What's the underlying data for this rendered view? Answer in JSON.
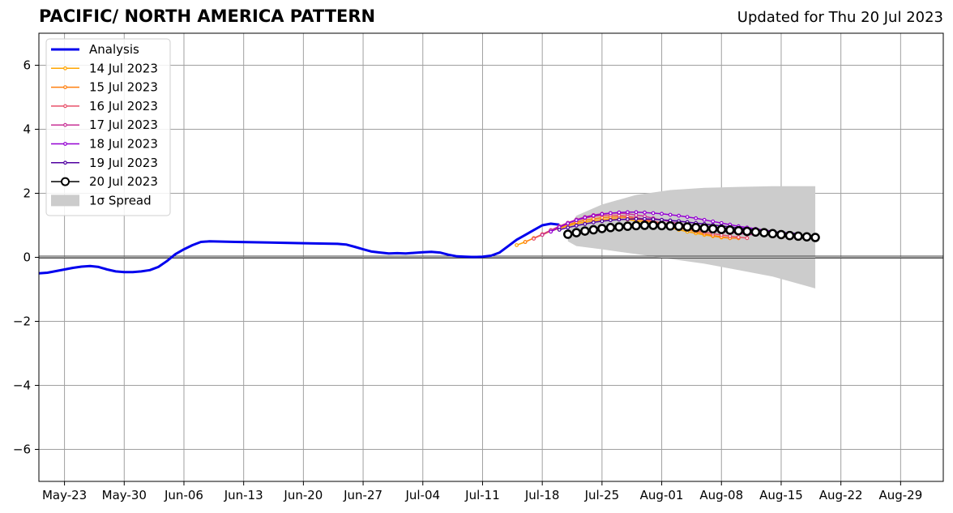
{
  "chart_data": {
    "type": "line",
    "title": "PACIFIC/ NORTH AMERICA PATTERN",
    "subtitle": "Updated for Thu 20 Jul 2023",
    "xlabel": "",
    "ylabel": "",
    "xlim": [
      "2023-05-20",
      "2023-09-03"
    ],
    "ylim": [
      -7,
      7
    ],
    "grid": true,
    "legend_position": "top-left",
    "x_ticks": [
      "2023-05-23",
      "2023-05-30",
      "2023-06-06",
      "2023-06-13",
      "2023-06-20",
      "2023-06-27",
      "2023-07-04",
      "2023-07-11",
      "2023-07-18",
      "2023-07-25",
      "2023-08-01",
      "2023-08-08",
      "2023-08-15",
      "2023-08-22",
      "2023-08-29"
    ],
    "x_tick_labels": [
      "May-23",
      "May-30",
      "Jun-06",
      "Jun-13",
      "Jun-20",
      "Jun-27",
      "Jul-04",
      "Jul-11",
      "Jul-18",
      "Jul-25",
      "Aug-01",
      "Aug-08",
      "Aug-15",
      "Aug-22",
      "Aug-29"
    ],
    "y_ticks": [
      -6,
      -4,
      -2,
      0,
      2,
      4,
      6
    ],
    "y_tick_labels": [
      "−6",
      "−4",
      "−2",
      "0",
      "2",
      "4",
      "6"
    ],
    "legend": [
      "Analysis",
      "14 Jul 2023",
      "15 Jul 2023",
      "16 Jul 2023",
      "17 Jul 2023",
      "18 Jul 2023",
      "19 Jul 2023",
      "20 Jul 2023",
      "1σ Spread"
    ],
    "series": [
      {
        "name": "Analysis",
        "color": "#0000ee",
        "x": [
          "2023-05-20",
          "2023-05-21",
          "2023-05-22",
          "2023-05-23",
          "2023-05-24",
          "2023-05-25",
          "2023-05-26",
          "2023-05-27",
          "2023-05-28",
          "2023-05-29",
          "2023-05-30",
          "2023-05-31",
          "2023-06-01",
          "2023-06-02",
          "2023-06-03",
          "2023-06-04",
          "2023-06-05",
          "2023-06-06",
          "2023-06-07",
          "2023-06-08",
          "2023-06-09",
          "2023-06-12",
          "2023-06-16",
          "2023-06-20",
          "2023-06-24",
          "2023-06-25",
          "2023-06-26",
          "2023-06-27",
          "2023-06-28",
          "2023-06-29",
          "2023-06-30",
          "2023-07-01",
          "2023-07-02",
          "2023-07-03",
          "2023-07-04",
          "2023-07-05",
          "2023-07-06",
          "2023-07-07",
          "2023-07-08",
          "2023-07-09",
          "2023-07-10",
          "2023-07-11",
          "2023-07-12",
          "2023-07-13",
          "2023-07-14",
          "2023-07-15",
          "2023-07-16",
          "2023-07-17",
          "2023-07-18",
          "2023-07-19",
          "2023-07-20"
        ],
        "values": [
          -0.5,
          -0.48,
          -0.43,
          -0.38,
          -0.33,
          -0.29,
          -0.27,
          -0.3,
          -0.38,
          -0.44,
          -0.46,
          -0.46,
          -0.44,
          -0.4,
          -0.3,
          -0.12,
          0.1,
          0.25,
          0.38,
          0.48,
          0.5,
          0.48,
          0.46,
          0.44,
          0.42,
          0.4,
          0.33,
          0.25,
          0.18,
          0.15,
          0.12,
          0.13,
          0.12,
          0.14,
          0.16,
          0.17,
          0.15,
          0.08,
          0.03,
          0.02,
          0.01,
          0.02,
          0.05,
          0.15,
          0.35,
          0.55,
          0.7,
          0.85,
          1.0,
          1.05,
          1.02
        ]
      },
      {
        "name": "14 Jul 2023",
        "color": "#ffa500",
        "start": "2023-07-15",
        "values": [
          0.38,
          0.48,
          0.6,
          0.7,
          0.82,
          0.9,
          0.98,
          1.05,
          1.1,
          1.14,
          1.18,
          1.2,
          1.2,
          1.18,
          1.14,
          1.1,
          1.04,
          0.98,
          0.92,
          0.86,
          0.8,
          0.75,
          0.7,
          0.66,
          0.62,
          0.6,
          0.6
        ]
      },
      {
        "name": "15 Jul 2023",
        "color": "#ff7f0e",
        "start": "2023-07-16",
        "values": [
          0.48,
          0.6,
          0.72,
          0.84,
          0.94,
          1.02,
          1.1,
          1.16,
          1.2,
          1.24,
          1.26,
          1.26,
          1.24,
          1.2,
          1.15,
          1.1,
          1.04,
          0.98,
          0.92,
          0.86,
          0.8,
          0.74,
          0.68,
          0.64,
          0.6,
          0.6
        ]
      },
      {
        "name": "16 Jul 2023",
        "color": "#e8506a",
        "start": "2023-07-17",
        "values": [
          0.58,
          0.72,
          0.85,
          0.97,
          1.07,
          1.16,
          1.22,
          1.28,
          1.31,
          1.32,
          1.31,
          1.28,
          1.24,
          1.19,
          1.13,
          1.07,
          1.02,
          0.96,
          0.9,
          0.84,
          0.79,
          0.74,
          0.7,
          0.66,
          0.63,
          0.6
        ]
      },
      {
        "name": "17 Jul 2023",
        "color": "#c83296",
        "start": "2023-07-18",
        "values": [
          0.7,
          0.84,
          0.97,
          1.08,
          1.18,
          1.26,
          1.32,
          1.36,
          1.38,
          1.38,
          1.36,
          1.32,
          1.28,
          1.22,
          1.17,
          1.11,
          1.05,
          1.0,
          0.95,
          0.9,
          0.86,
          0.82,
          0.78,
          0.75,
          0.72,
          0.7
        ]
      },
      {
        "name": "18 Jul 2023",
        "color": "#9400d3",
        "start": "2023-07-19",
        "values": [
          0.8,
          0.94,
          1.06,
          1.16,
          1.24,
          1.3,
          1.35,
          1.38,
          1.4,
          1.41,
          1.41,
          1.4,
          1.38,
          1.36,
          1.33,
          1.3,
          1.26,
          1.22,
          1.17,
          1.12,
          1.07,
          1.02,
          0.97,
          0.93,
          0.89,
          0.85,
          0.82
        ]
      },
      {
        "name": "19 Jul 2023",
        "color": "#5000a0",
        "start": "2023-07-20",
        "values": [
          0.86,
          0.93,
          0.99,
          1.04,
          1.09,
          1.13,
          1.16,
          1.18,
          1.19,
          1.2,
          1.2,
          1.19,
          1.17,
          1.15,
          1.13,
          1.1,
          1.07,
          1.04,
          1.01,
          0.98,
          0.95,
          0.92,
          0.89,
          0.86,
          0.83,
          0.8,
          0.78,
          0.76,
          0.74
        ]
      },
      {
        "name": "20 Jul 2023",
        "color": "#000000",
        "start": "2023-07-21",
        "values": [
          0.72,
          0.77,
          0.82,
          0.86,
          0.9,
          0.93,
          0.95,
          0.97,
          0.99,
          1.0,
          1.0,
          0.99,
          0.98,
          0.97,
          0.95,
          0.93,
          0.91,
          0.89,
          0.87,
          0.85,
          0.83,
          0.81,
          0.79,
          0.77,
          0.74,
          0.71,
          0.68,
          0.66,
          0.64,
          0.62
        ]
      }
    ],
    "spread": {
      "name": "1σ Spread",
      "color": "#cccccc",
      "x": [
        "2023-07-21",
        "2023-07-22",
        "2023-07-25",
        "2023-07-29",
        "2023-08-02",
        "2023-08-06",
        "2023-08-10",
        "2023-08-14",
        "2023-08-19"
      ],
      "upper": [
        0.9,
        1.3,
        1.65,
        1.95,
        2.1,
        2.17,
        2.2,
        2.22,
        2.22
      ],
      "lower": [
        0.5,
        0.35,
        0.25,
        0.1,
        -0.05,
        -0.2,
        -0.4,
        -0.6,
        -0.97
      ]
    }
  }
}
